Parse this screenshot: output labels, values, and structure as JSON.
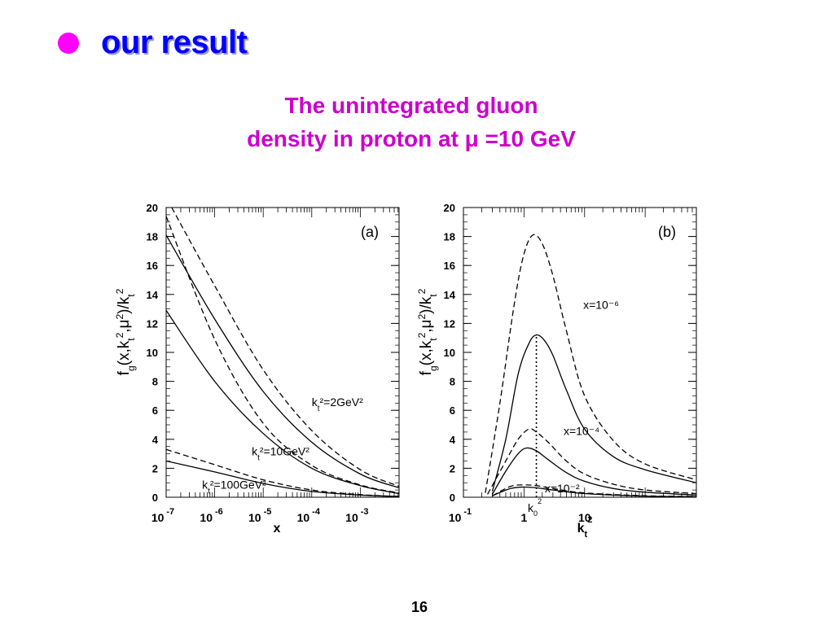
{
  "slide": {
    "heading": "our result",
    "subtitle_line1": "The unintegrated gluon",
    "subtitle_line2": "density  in proton at  μ =10 GeV",
    "page_number": "16",
    "colors": {
      "bullet": "#ff00ff",
      "heading": "#0000ff",
      "subtitle": "#cc00cc"
    }
  },
  "chart_data": [
    {
      "panel": "(a)",
      "type": "line",
      "xscale": "log",
      "xlim": [
        1e-07,
        0.0063
      ],
      "ylim": [
        0,
        20
      ],
      "xlabel": "x",
      "ylabel": "f_g(x,k_t^2,μ^2)/k_t^2",
      "xticks": [
        1e-07,
        1e-06,
        1e-05,
        0.0001,
        0.001
      ],
      "xtick_labels": [
        "10 -7",
        "10 -6",
        "10 -5",
        "10 -4",
        "10 -3"
      ],
      "yticks": [
        0,
        2,
        4,
        6,
        8,
        10,
        12,
        14,
        16,
        18,
        20
      ],
      "series": [
        {
          "style": "dashed",
          "points": [
            [
              1.3e-07,
              20.0
            ],
            [
              1e-06,
              14.6
            ],
            [
              1e-05,
              8.8
            ],
            [
              0.0001,
              4.6
            ],
            [
              0.001,
              1.9
            ],
            [
              0.0063,
              0.75
            ]
          ]
        },
        {
          "style": "solid",
          "points": [
            [
              1e-07,
              18.1
            ],
            [
              1e-06,
              12.3
            ],
            [
              1e-05,
              7.3
            ],
            [
              0.0001,
              3.8
            ],
            [
              0.001,
              1.6
            ],
            [
              0.0063,
              0.65
            ]
          ]
        },
        {
          "style": "dashed",
          "points": [
            [
              1e-07,
              19.4
            ],
            [
              1e-06,
              10.9
            ],
            [
              1e-05,
              5.1
            ],
            [
              0.0001,
              2.2
            ],
            [
              0.001,
              0.85
            ],
            [
              0.0063,
              0.3
            ]
          ]
        },
        {
          "style": "solid",
          "points": [
            [
              1e-07,
              12.9
            ],
            [
              1e-06,
              8.0
            ],
            [
              1e-05,
              4.4
            ],
            [
              0.0001,
              2.0
            ],
            [
              0.001,
              0.8
            ],
            [
              0.0063,
              0.25
            ]
          ]
        },
        {
          "style": "dashed",
          "points": [
            [
              1e-07,
              3.3
            ],
            [
              1e-06,
              2.25
            ],
            [
              1e-05,
              1.2
            ],
            [
              0.0001,
              0.5
            ],
            [
              0.001,
              0.18
            ],
            [
              0.0063,
              0.05
            ]
          ]
        },
        {
          "style": "solid",
          "points": [
            [
              1e-07,
              2.5
            ],
            [
              1e-06,
              1.75
            ],
            [
              1e-05,
              0.95
            ],
            [
              0.0001,
              0.4
            ],
            [
              0.001,
              0.15
            ],
            [
              0.0063,
              0.05
            ]
          ]
        }
      ],
      "annotations": [
        {
          "text": "k_t²=2GeV²",
          "at": [
            0.0001,
            6.3
          ]
        },
        {
          "text": "k_t²=10GeV²",
          "at": [
            5.8e-06,
            2.9
          ]
        },
        {
          "text": "k_t²=100GeV²",
          "at": [
            5.5e-07,
            0.6
          ]
        }
      ]
    },
    {
      "panel": "(b)",
      "type": "line",
      "xscale": "log",
      "xlim": [
        0.1,
        700
      ],
      "ylim": [
        0,
        20
      ],
      "xlabel": "k_t²",
      "ylabel": "f_g(x,k_t^2,μ^2)/k_t^2",
      "xticks": [
        0.1,
        1,
        10
      ],
      "xtick_labels": [
        "10 -1",
        "1",
        "10"
      ],
      "yticks": [
        0,
        2,
        4,
        6,
        8,
        10,
        12,
        14,
        16,
        18,
        20
      ],
      "vline": {
        "x": 1.6,
        "label": "k_0²"
      },
      "series": [
        {
          "style": "dashed",
          "points": [
            [
              0.23,
              0.3
            ],
            [
              0.4,
              6.5
            ],
            [
              0.7,
              13.5
            ],
            [
              1.0,
              16.8
            ],
            [
              1.4,
              18.1
            ],
            [
              2.0,
              17.5
            ],
            [
              3.0,
              15.3
            ],
            [
              5.0,
              11.5
            ],
            [
              10,
              7.0
            ],
            [
              30,
              3.9
            ],
            [
              100,
              2.3
            ],
            [
              700,
              1.2
            ]
          ]
        },
        {
          "style": "solid",
          "points": [
            [
              0.3,
              0.4
            ],
            [
              0.5,
              4.0
            ],
            [
              0.8,
              8.5
            ],
            [
              1.2,
              10.6
            ],
            [
              1.6,
              11.2
            ],
            [
              2.2,
              10.8
            ],
            [
              3.0,
              9.8
            ],
            [
              5.0,
              7.4
            ],
            [
              10,
              4.7
            ],
            [
              30,
              2.8
            ],
            [
              100,
              1.9
            ],
            [
              700,
              1.0
            ]
          ]
        },
        {
          "style": "dashed",
          "points": [
            [
              0.25,
              0.2
            ],
            [
              0.5,
              2.5
            ],
            [
              0.8,
              4.0
            ],
            [
              1.2,
              4.7
            ],
            [
              1.6,
              4.5
            ],
            [
              2.5,
              3.8
            ],
            [
              5,
              2.5
            ],
            [
              10,
              1.6
            ],
            [
              30,
              0.9
            ],
            [
              100,
              0.5
            ],
            [
              700,
              0.25
            ]
          ]
        },
        {
          "style": "solid",
          "points": [
            [
              0.3,
              0.2
            ],
            [
              0.5,
              1.8
            ],
            [
              0.8,
              3.0
            ],
            [
              1.1,
              3.4
            ],
            [
              1.6,
              3.2
            ],
            [
              2.5,
              2.6
            ],
            [
              5,
              1.7
            ],
            [
              10,
              1.1
            ],
            [
              30,
              0.6
            ],
            [
              100,
              0.35
            ],
            [
              700,
              0.15
            ]
          ]
        },
        {
          "style": "dashed",
          "points": [
            [
              0.3,
              0.1
            ],
            [
              0.6,
              0.75
            ],
            [
              1.0,
              0.85
            ],
            [
              1.6,
              0.8
            ],
            [
              3,
              0.6
            ],
            [
              10,
              0.3
            ],
            [
              100,
              0.1
            ],
            [
              700,
              0.05
            ]
          ]
        },
        {
          "style": "solid",
          "points": [
            [
              0.3,
              0.1
            ],
            [
              0.6,
              0.6
            ],
            [
              1.0,
              0.7
            ],
            [
              1.6,
              0.65
            ],
            [
              3,
              0.5
            ],
            [
              10,
              0.25
            ],
            [
              100,
              0.08
            ],
            [
              700,
              0.04
            ]
          ]
        }
      ],
      "annotations": [
        {
          "text": "x=10⁻⁶",
          "at": [
            9.5,
            13.0
          ]
        },
        {
          "text": "x=10⁻⁴",
          "at": [
            4.5,
            4.3
          ]
        },
        {
          "text": "x=10⁻²",
          "at": [
            2.2,
            0.35
          ]
        }
      ]
    }
  ]
}
